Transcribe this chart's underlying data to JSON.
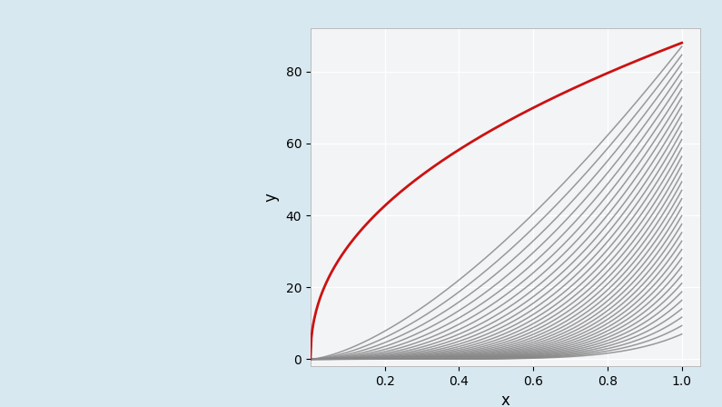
{
  "background_color": "#d8e8f0",
  "plot_bg_color": "#f2f4f6",
  "xlim": [
    0,
    1.05
  ],
  "ylim": [
    -2,
    92
  ],
  "xticks": [
    0.2,
    0.4,
    0.6,
    0.8,
    1.0
  ],
  "yticks": [
    0,
    20,
    40,
    60,
    80
  ],
  "xlabel": "x",
  "ylabel": "y",
  "xlabel_fontsize": 12,
  "ylabel_fontsize": 12,
  "tick_fontsize": 10,
  "n_gray_lines": 35,
  "gray_color": "#888888",
  "red_color": "#cc1111",
  "gray_alpha": 0.85,
  "gray_linewidth": 1.1,
  "red_linewidth": 2.0,
  "n_points": 400,
  "red_scale": 88,
  "red_exponent": 0.45
}
